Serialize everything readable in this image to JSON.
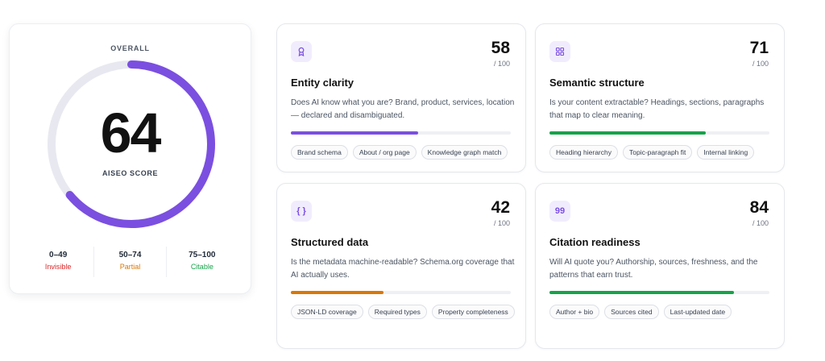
{
  "overall": {
    "label": "OVERALL",
    "score": "64",
    "score_value": 64,
    "score_max": 100,
    "score_label": "AISEO SCORE",
    "gauge_color": "#7b4fe0",
    "track_color": "#e8e8f1",
    "legend": [
      {
        "range": "0–49",
        "name": "Invisible",
        "color": "#dc2626"
      },
      {
        "range": "50–74",
        "name": "Partial",
        "color": "#d97706"
      },
      {
        "range": "75–100",
        "name": "Citable",
        "color": "#16a34a"
      }
    ]
  },
  "metrics": [
    {
      "icon": "award-icon",
      "score": "58",
      "max": "/ 100",
      "progress": 0.58,
      "bar_color": "#7b4fe0",
      "title": "Entity clarity",
      "description": "Does AI know what you are? Brand, product, services, location — declared and disambiguated.",
      "tags": [
        "Brand schema",
        "About / org page",
        "Knowledge graph match"
      ]
    },
    {
      "icon": "grid-icon",
      "score": "71",
      "max": "/ 100",
      "progress": 0.71,
      "bar_color": "#16a34a",
      "title": "Semantic structure",
      "description": "Is your content extractable? Headings, sections, paragraphs that map to clear meaning.",
      "tags": [
        "Heading hierarchy",
        "Topic-paragraph fit",
        "Internal linking"
      ]
    },
    {
      "icon": "braces-icon",
      "icon_text": "{ }",
      "score": "42",
      "max": "/ 100",
      "progress": 0.42,
      "bar_color": "#d97706",
      "title": "Structured data",
      "description": "Is the metadata machine-readable? Schema.org coverage that AI actually uses.",
      "tags": [
        "JSON-LD coverage",
        "Required types",
        "Property completeness"
      ]
    },
    {
      "icon": "quote-icon",
      "icon_text": "99",
      "score": "84",
      "max": "/ 100",
      "progress": 0.84,
      "bar_color": "#16a34a",
      "title": "Citation readiness",
      "description": "Will AI quote you? Authorship, sources, freshness, and the patterns that earn trust.",
      "tags": [
        "Author + bio",
        "Sources cited",
        "Last-updated date"
      ]
    }
  ]
}
